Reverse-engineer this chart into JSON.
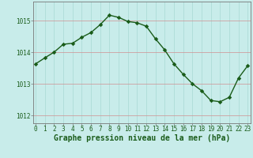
{
  "x": [
    0,
    1,
    2,
    3,
    4,
    5,
    6,
    7,
    8,
    9,
    10,
    11,
    12,
    13,
    14,
    15,
    16,
    17,
    18,
    19,
    20,
    21,
    22,
    23
  ],
  "y": [
    1013.63,
    1013.82,
    1014.0,
    1014.25,
    1014.28,
    1014.47,
    1014.62,
    1014.87,
    1015.17,
    1015.1,
    1014.97,
    1014.93,
    1014.82,
    1014.42,
    1014.07,
    1013.63,
    1013.3,
    1013.0,
    1012.78,
    1012.47,
    1012.43,
    1012.57,
    1013.18,
    1013.57
  ],
  "line_color": "#1a5c1a",
  "marker_color": "#1a5c1a",
  "bg_color": "#c8ecea",
  "plot_bg": "#c8ecea",
  "fig_bg": "#c8ecea",
  "vgrid_color": "#a8d8d4",
  "hgrid_color": "#d09090",
  "ylabel_ticks": [
    1012,
    1013,
    1014,
    1015
  ],
  "xlabel_ticks": [
    0,
    1,
    2,
    3,
    4,
    5,
    6,
    7,
    8,
    9,
    10,
    11,
    12,
    13,
    14,
    15,
    16,
    17,
    18,
    19,
    20,
    21,
    22,
    23
  ],
  "ylim": [
    1011.75,
    1015.6
  ],
  "xlim": [
    -0.3,
    23.3
  ],
  "xlabel": "Graphe pression niveau de la mer (hPa)",
  "xlabel_fontsize": 7,
  "tick_fontsize": 5.5,
  "marker_size": 2.8,
  "line_width": 1.0,
  "spine_color": "#777777",
  "text_color": "#1a5c1a"
}
